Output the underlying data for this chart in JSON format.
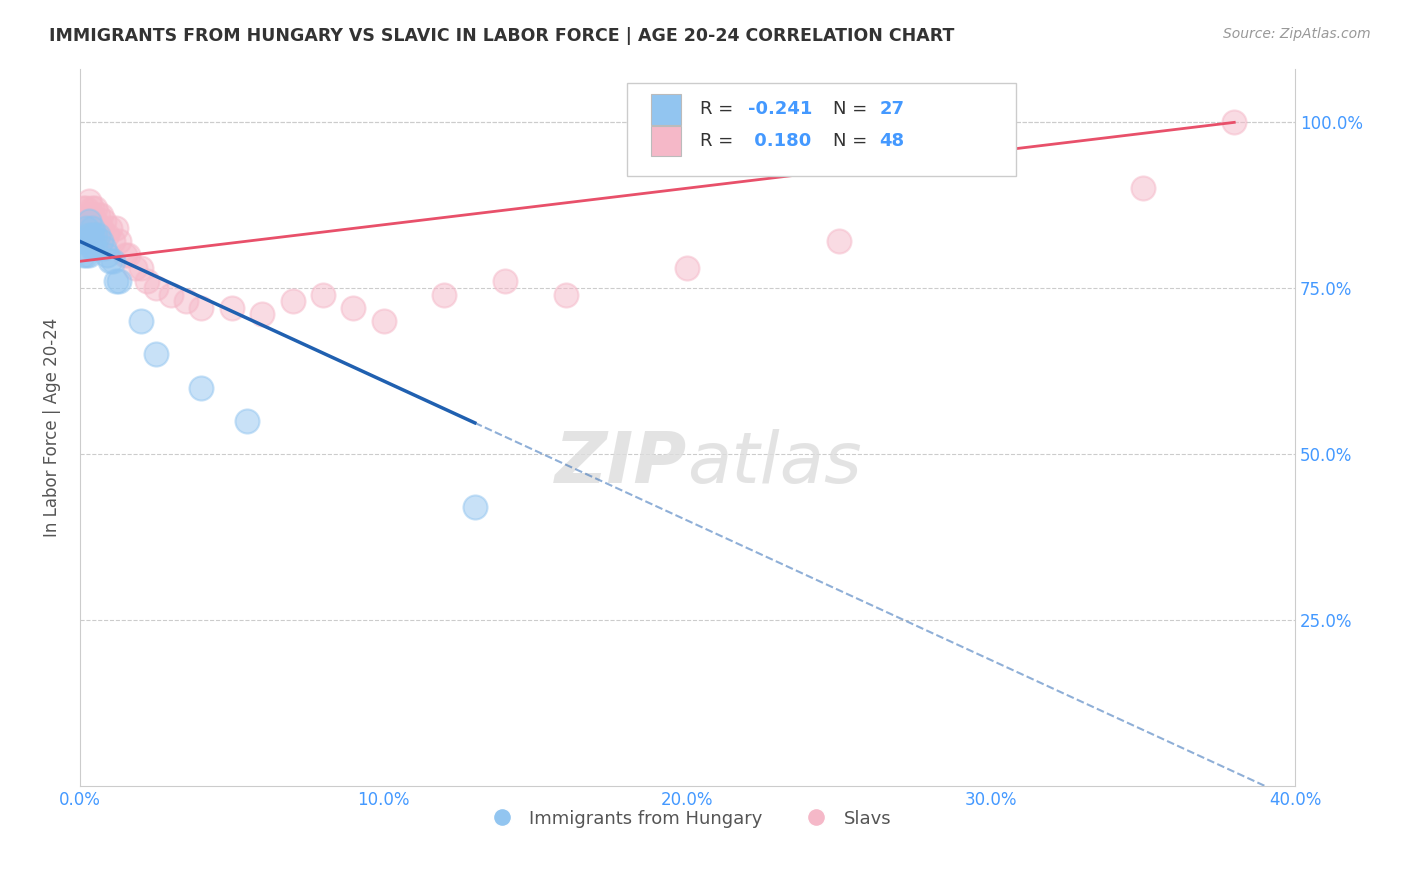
{
  "title": "IMMIGRANTS FROM HUNGARY VS SLAVIC IN LABOR FORCE | AGE 20-24 CORRELATION CHART",
  "source": "Source: ZipAtlas.com",
  "ylabel": "In Labor Force | Age 20-24",
  "xlim": [
    0.0,
    0.4
  ],
  "ylim": [
    0.0,
    1.08
  ],
  "x_ticks": [
    0.0,
    0.1,
    0.2,
    0.3,
    0.4
  ],
  "x_tick_labels": [
    "0.0%",
    "10.0%",
    "20.0%",
    "30.0%",
    "40.0%"
  ],
  "y_ticks": [
    0.0,
    0.25,
    0.5,
    0.75,
    1.0
  ],
  "y_tick_labels_right": [
    "",
    "25.0%",
    "50.0%",
    "75.0%",
    "100.0%"
  ],
  "r1": "-0.241",
  "n1": "27",
  "r2": "0.180",
  "n2": "48",
  "series1_label": "Immigrants from Hungary",
  "series2_label": "Slavs",
  "color1": "#92C5F0",
  "color2": "#F5B8C8",
  "line1_color": "#2060B0",
  "line2_color": "#E8506A",
  "background": "#FFFFFF",
  "grid_color": "#CCCCCC",
  "title_color": "#333333",
  "tick_color": "#4499FF",
  "legend_r_color": "#4499FF",
  "legend_n_color": "#4499FF",
  "hungary_x": [
    0.001,
    0.001,
    0.002,
    0.002,
    0.002,
    0.003,
    0.003,
    0.003,
    0.003,
    0.004,
    0.004,
    0.004,
    0.005,
    0.005,
    0.006,
    0.007,
    0.008,
    0.009,
    0.01,
    0.011,
    0.012,
    0.013,
    0.02,
    0.025,
    0.04,
    0.055,
    0.13
  ],
  "hungary_y": [
    0.82,
    0.8,
    0.84,
    0.82,
    0.8,
    0.85,
    0.83,
    0.82,
    0.8,
    0.84,
    0.83,
    0.81,
    0.83,
    0.81,
    0.83,
    0.82,
    0.81,
    0.8,
    0.79,
    0.79,
    0.76,
    0.76,
    0.7,
    0.65,
    0.6,
    0.55,
    0.42
  ],
  "slavs_x": [
    0.001,
    0.001,
    0.001,
    0.002,
    0.002,
    0.002,
    0.003,
    0.003,
    0.003,
    0.003,
    0.004,
    0.004,
    0.004,
    0.005,
    0.005,
    0.005,
    0.006,
    0.006,
    0.007,
    0.007,
    0.008,
    0.009,
    0.01,
    0.011,
    0.012,
    0.013,
    0.015,
    0.016,
    0.018,
    0.02,
    0.022,
    0.025,
    0.03,
    0.035,
    0.04,
    0.05,
    0.06,
    0.07,
    0.08,
    0.09,
    0.1,
    0.12,
    0.14,
    0.16,
    0.2,
    0.25,
    0.35,
    0.38
  ],
  "slavs_y": [
    0.87,
    0.85,
    0.83,
    0.87,
    0.85,
    0.83,
    0.88,
    0.86,
    0.85,
    0.83,
    0.87,
    0.86,
    0.84,
    0.87,
    0.85,
    0.84,
    0.86,
    0.84,
    0.86,
    0.84,
    0.85,
    0.83,
    0.84,
    0.82,
    0.84,
    0.82,
    0.8,
    0.8,
    0.78,
    0.78,
    0.76,
    0.75,
    0.74,
    0.73,
    0.72,
    0.72,
    0.71,
    0.73,
    0.74,
    0.72,
    0.7,
    0.74,
    0.76,
    0.74,
    0.78,
    0.82,
    0.9,
    1.0
  ]
}
